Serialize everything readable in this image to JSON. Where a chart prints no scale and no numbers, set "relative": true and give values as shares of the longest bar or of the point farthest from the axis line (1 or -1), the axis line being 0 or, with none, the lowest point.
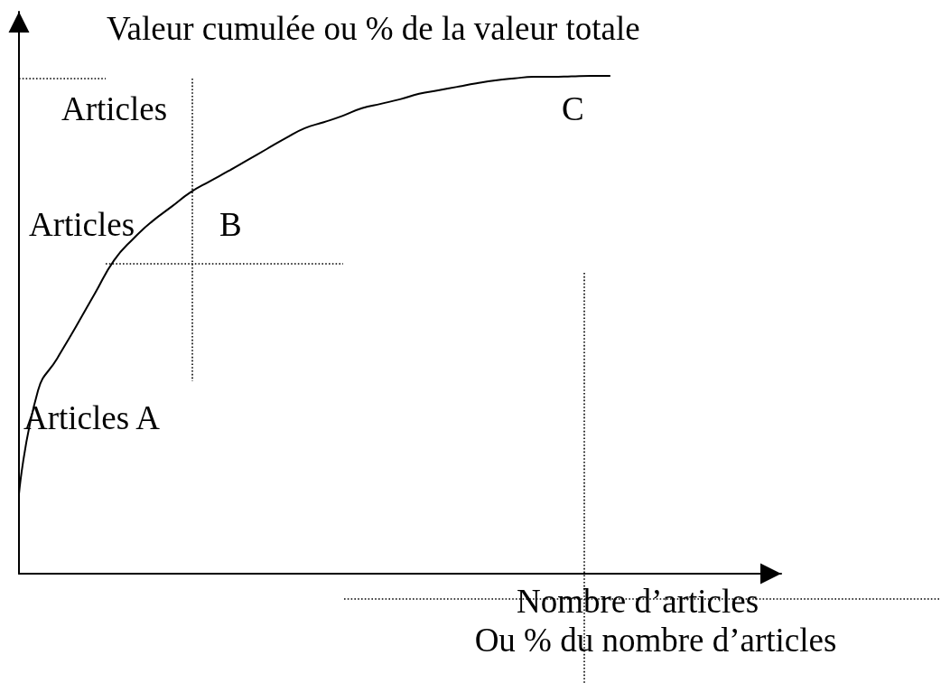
{
  "chart_data": {
    "type": "line",
    "relative": true,
    "marker": "none",
    "color": "#000000",
    "ylabel": "Valeur cumulée ou % de la valeur totale",
    "xlabel": "Nombre d’articles\nOu % du nombre d’articles",
    "annotations": [
      "Articles",
      "C",
      "Articles",
      "B",
      "Articles A"
    ],
    "categories": [
      null,
      null,
      null,
      null,
      null,
      null,
      null,
      null,
      null,
      null,
      null,
      null,
      null,
      null,
      null,
      null,
      null,
      null,
      null,
      null,
      null,
      null,
      null,
      null,
      null,
      null,
      null,
      null,
      null,
      null,
      null,
      null,
      null,
      null,
      null,
      null,
      null,
      null,
      null,
      null,
      null
    ],
    "values": [
      0.16,
      0.368,
      0.432,
      0.497,
      0.564,
      0.63,
      0.673,
      0.708,
      0.737,
      0.766,
      0.788,
      0.809,
      0.831,
      0.853,
      0.875,
      0.895,
      0.907,
      0.92,
      0.935,
      0.944,
      0.953,
      0.964,
      0.971,
      0.978,
      0.985,
      0.991,
      0.995,
      0.998,
      0.998,
      0.999,
      1.0,
      1.0,
      null,
      null,
      null,
      null,
      null,
      null,
      null,
      null,
      null
    ]
  }
}
